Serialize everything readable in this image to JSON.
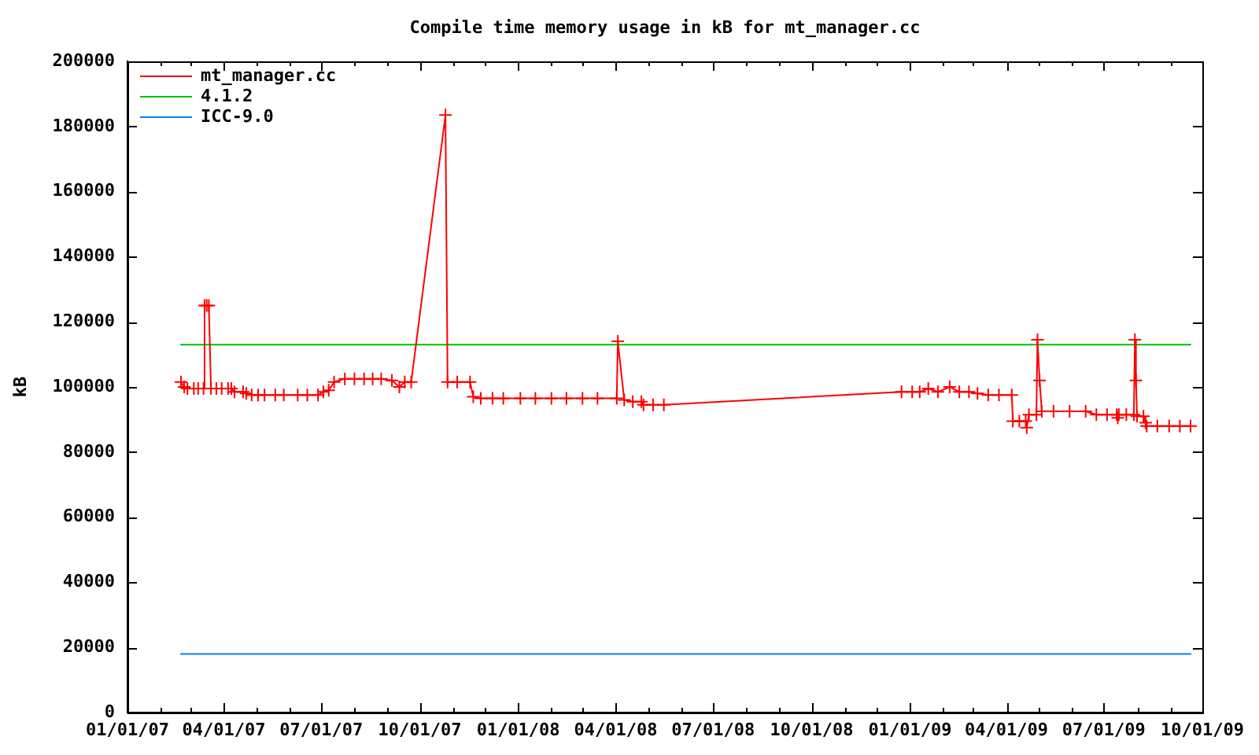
{
  "chart_data": {
    "type": "line",
    "title": "Compile time memory usage in kB for mt_manager.cc",
    "ylabel": "kB",
    "legend": "top left",
    "xlim": [
      "2007-01-01",
      "2009-10-01"
    ],
    "xticks": [
      {
        "value": "2007-01-01",
        "label": "01/01/07"
      },
      {
        "value": "2007-02-01",
        "label": null
      },
      {
        "value": "2007-03-01",
        "label": null
      },
      {
        "value": "2007-04-01",
        "label": "04/01/07"
      },
      {
        "value": "2007-05-01",
        "label": null
      },
      {
        "value": "2007-06-01",
        "label": null
      },
      {
        "value": "2007-07-01",
        "label": "07/01/07"
      },
      {
        "value": "2007-08-01",
        "label": null
      },
      {
        "value": "2007-09-01",
        "label": null
      },
      {
        "value": "2007-10-01",
        "label": "10/01/07"
      },
      {
        "value": "2007-11-01",
        "label": null
      },
      {
        "value": "2007-12-01",
        "label": null
      },
      {
        "value": "2008-01-01",
        "label": "01/01/08"
      },
      {
        "value": "2008-02-01",
        "label": null
      },
      {
        "value": "2008-03-01",
        "label": null
      },
      {
        "value": "2008-04-01",
        "label": "04/01/08"
      },
      {
        "value": "2008-05-01",
        "label": null
      },
      {
        "value": "2008-06-01",
        "label": null
      },
      {
        "value": "2008-07-01",
        "label": "07/01/08"
      },
      {
        "value": "2008-08-01",
        "label": null
      },
      {
        "value": "2008-09-01",
        "label": null
      },
      {
        "value": "2008-10-01",
        "label": "10/01/08"
      },
      {
        "value": "2008-11-01",
        "label": null
      },
      {
        "value": "2008-12-01",
        "label": null
      },
      {
        "value": "2009-01-01",
        "label": "01/01/09"
      },
      {
        "value": "2009-02-01",
        "label": null
      },
      {
        "value": "2009-03-01",
        "label": null
      },
      {
        "value": "2009-04-01",
        "label": "04/01/09"
      },
      {
        "value": "2009-05-01",
        "label": null
      },
      {
        "value": "2009-06-01",
        "label": null
      },
      {
        "value": "2009-07-01",
        "label": "07/01/09"
      },
      {
        "value": "2009-08-01",
        "label": null
      },
      {
        "value": "2009-09-01",
        "label": null
      },
      {
        "value": "2009-10-01",
        "label": "10/01/09"
      }
    ],
    "ylim": [
      0,
      200000
    ],
    "yticks": [
      0,
      20000,
      40000,
      60000,
      80000,
      100000,
      120000,
      140000,
      160000,
      180000,
      200000
    ],
    "series": [
      {
        "name": "mt_manager.cc",
        "color": "#ff0000",
        "marker": "cross",
        "x": [
          "2007-02-20",
          "2007-02-23",
          "2007-02-26",
          "2007-03-04",
          "2007-03-08",
          "2007-03-13",
          "2007-03-14",
          "2007-03-16",
          "2007-03-18",
          "2007-03-20",
          "2007-03-25",
          "2007-03-30",
          "2007-04-05",
          "2007-04-08",
          "2007-04-11",
          "2007-04-19",
          "2007-04-22",
          "2007-04-27",
          "2007-05-03",
          "2007-05-09",
          "2007-05-19",
          "2007-05-27",
          "2007-06-09",
          "2007-06-18",
          "2007-06-28",
          "2007-07-03",
          "2007-07-08",
          "2007-07-13",
          "2007-07-23",
          "2007-08-01",
          "2007-08-10",
          "2007-08-18",
          "2007-08-26",
          "2007-09-05",
          "2007-09-12",
          "2007-09-17",
          "2007-09-23",
          "2007-10-25",
          "2007-10-27",
          "2007-11-05",
          "2007-11-17",
          "2007-11-20",
          "2007-11-27",
          "2007-12-08",
          "2007-12-18",
          "2008-01-03",
          "2008-01-17",
          "2008-02-01",
          "2008-02-15",
          "2008-03-01",
          "2008-03-15",
          "2008-04-02",
          "2008-04-03",
          "2008-04-09",
          "2008-04-17",
          "2008-04-25",
          "2008-04-27",
          "2008-05-06",
          "2008-05-16",
          "2008-12-24",
          "2009-01-03",
          "2009-01-10",
          "2009-01-18",
          "2009-01-27",
          "2009-02-07",
          "2009-02-16",
          "2009-02-25",
          "2009-03-05",
          "2009-03-15",
          "2009-03-25",
          "2009-04-06",
          "2009-04-07",
          "2009-04-13",
          "2009-04-19",
          "2009-04-20",
          "2009-04-22",
          "2009-04-29",
          "2009-04-30",
          "2009-05-02",
          "2009-05-04",
          "2009-05-15",
          "2009-05-30",
          "2009-06-14",
          "2009-06-24",
          "2009-07-04",
          "2009-07-13",
          "2009-07-14",
          "2009-07-15",
          "2009-07-22",
          "2009-07-29",
          "2009-07-30",
          "2009-07-31",
          "2009-08-01",
          "2009-08-07",
          "2009-08-09",
          "2009-08-10",
          "2009-08-20",
          "2009-08-31",
          "2009-09-10",
          "2009-09-20"
        ],
        "values": [
          101500,
          100000,
          99500,
          99500,
          99500,
          99500,
          125000,
          125000,
          125000,
          99500,
          99500,
          99500,
          99500,
          99500,
          98500,
          98500,
          98000,
          97500,
          97500,
          97500,
          97500,
          97500,
          97500,
          97500,
          97500,
          98500,
          99000,
          101500,
          102500,
          102500,
          102500,
          102500,
          102500,
          102000,
          100000,
          101500,
          101500,
          183500,
          101500,
          101500,
          101500,
          97000,
          96500,
          96500,
          96500,
          96500,
          96500,
          96500,
          96500,
          96500,
          96500,
          96500,
          114000,
          96000,
          95500,
          95500,
          94500,
          94500,
          94500,
          98500,
          98500,
          98500,
          99500,
          98500,
          100000,
          98500,
          98500,
          98000,
          97500,
          97500,
          97500,
          89500,
          89500,
          89500,
          87500,
          91500,
          91500,
          114500,
          102000,
          92500,
          92500,
          92500,
          92500,
          91500,
          91500,
          91500,
          90500,
          91500,
          91500,
          91500,
          114500,
          102000,
          91000,
          91000,
          89000,
          88000,
          88000,
          88000,
          88000,
          88000
        ]
      },
      {
        "name": "4.1.2",
        "color": "#00c000",
        "marker": "none",
        "x": [
          "2007-02-20",
          "2009-09-20"
        ],
        "values": [
          113000,
          113000
        ]
      },
      {
        "name": "ICC-9.0",
        "color": "#0080ff",
        "marker": "none",
        "x": [
          "2007-02-20",
          "2009-09-20"
        ],
        "values": [
          18000,
          18000
        ]
      }
    ]
  }
}
